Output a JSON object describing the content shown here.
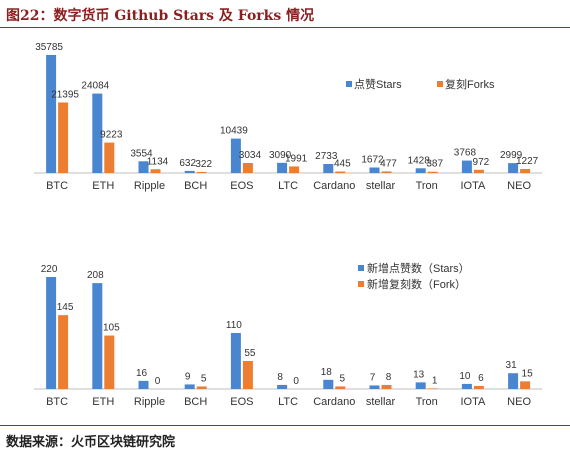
{
  "figure_title": "图22：数字货币 Github Stars 及 Forks 情况",
  "source": "数据来源：火币区块链研究院",
  "colors": {
    "blue": "#4a86cf",
    "orange": "#ed7d31",
    "axis": "#bfbfbf"
  },
  "chart_data": [
    {
      "type": "bar",
      "categories": [
        "BTC",
        "ETH",
        "Ripple",
        "BCH",
        "EOS",
        "LTC",
        "Cardano",
        "stellar",
        "Tron",
        "IOTA",
        "NEO"
      ],
      "series": [
        {
          "name": "点赞Stars",
          "values": [
            35785,
            24084,
            3554,
            632,
            10439,
            3090,
            2733,
            1672,
            1428,
            3768,
            2999
          ]
        },
        {
          "name": "复刻Forks",
          "values": [
            21395,
            9223,
            1134,
            322,
            3034,
            1991,
            445,
            477,
            387,
            972,
            1227
          ]
        }
      ],
      "legend_position": "right"
    },
    {
      "type": "bar",
      "categories": [
        "BTC",
        "ETH",
        "Ripple",
        "BCH",
        "EOS",
        "LTC",
        "Cardano",
        "stellar",
        "Tron",
        "IOTA",
        "NEO"
      ],
      "series": [
        {
          "name": "新增点赞数（Stars）",
          "values": [
            220,
            208,
            16,
            9,
            110,
            8,
            18,
            7,
            13,
            10,
            31
          ]
        },
        {
          "name": "新增复刻数（Fork）",
          "values": [
            145,
            105,
            0,
            5,
            55,
            0,
            5,
            8,
            1,
            6,
            15
          ]
        }
      ],
      "legend_position": "right"
    }
  ]
}
